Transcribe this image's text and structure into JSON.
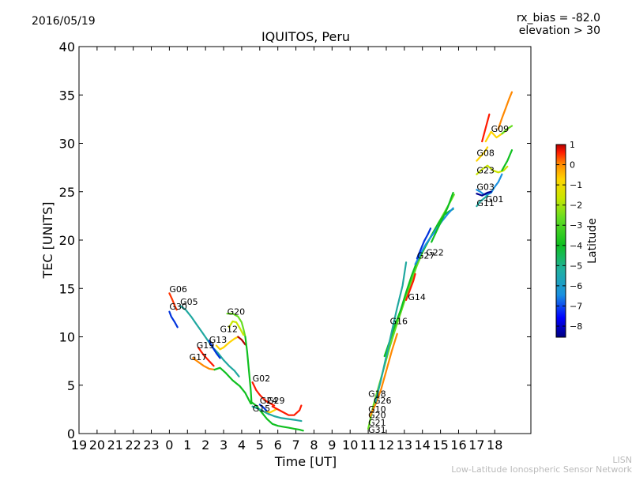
{
  "header": {
    "date": "2016/05/19",
    "rx_bias": "rx_bias = -82.0",
    "elevation": "elevation > 30",
    "title": "IQUITOS, Peru"
  },
  "footer": {
    "line1": "LISN",
    "line2": "Low-Latitude Ionospheric Sensor Network"
  },
  "colors": {
    "dark_red": "#b30000",
    "red": "#ff1a00",
    "orange": "#ff8800",
    "yellow": "#ffd400",
    "yellow_green": "#c8e600",
    "light_green": "#66dd22",
    "green": "#10c020",
    "teal": "#20a8a0",
    "light_blue": "#1a90e0",
    "blue": "#0033dd",
    "dark_blue": "#000090"
  },
  "chart_data": {
    "type": "line",
    "title": "IQUITOS, Peru",
    "xlabel": "Time [UT]",
    "ylabel": "TEC [UNITS]",
    "xticks": [
      "19",
      "20",
      "21",
      "22",
      "23",
      "0",
      "1",
      "2",
      "3",
      "4",
      "5",
      "6",
      "7",
      "8",
      "9",
      "10",
      "11",
      "12",
      "13",
      "14",
      "15",
      "16",
      "17",
      "18"
    ],
    "ylim": [
      0,
      40
    ],
    "yticks": [
      "0",
      "5",
      "10",
      "15",
      "20",
      "25",
      "30",
      "35",
      "40"
    ],
    "grid": false,
    "colorbar": {
      "label": "Latitude",
      "ticks": [
        "1",
        "0",
        "−1",
        "−2",
        "−3",
        "−4",
        "−5",
        "−6",
        "−7",
        "−8"
      ]
    },
    "series": [
      {
        "name": "G06",
        "color": "#ff3300",
        "x": [
          0.0,
          0.15,
          0.3,
          0.4
        ],
        "y": [
          14.5,
          13.9,
          13.2,
          12.8
        ]
      },
      {
        "name": "G05",
        "color": "#20a8a0",
        "x": [
          0.6,
          0.9,
          1.2,
          1.5,
          1.8,
          2.1,
          2.4,
          2.7,
          3.0,
          3.3,
          3.6,
          3.85
        ],
        "y": [
          13.2,
          12.8,
          12.1,
          11.3,
          10.5,
          9.7,
          8.9,
          8.3,
          7.6,
          7.0,
          6.5,
          5.9
        ]
      },
      {
        "name": "G30",
        "color": "#0033dd",
        "x": [
          0.0,
          0.1,
          0.3,
          0.45
        ],
        "y": [
          12.6,
          12.1,
          11.5,
          11.0
        ]
      },
      {
        "name": "G17",
        "color": "#ff8800",
        "x": [
          1.3,
          1.6,
          1.9,
          2.2,
          2.5
        ],
        "y": [
          7.8,
          7.4,
          7.0,
          6.7,
          6.6
        ]
      },
      {
        "name": "G17 tail",
        "color": "#10c020",
        "x": [
          2.5,
          2.8,
          3.1,
          3.5,
          3.9,
          4.2,
          4.5
        ],
        "y": [
          6.6,
          6.8,
          6.3,
          5.5,
          4.9,
          4.2,
          3.1
        ]
      },
      {
        "name": "G19",
        "color": "#ff1a00",
        "x": [
          1.6,
          1.9,
          2.2,
          2.45
        ],
        "y": [
          8.9,
          8.1,
          7.5,
          7.0
        ]
      },
      {
        "name": "G13",
        "color": "#0033dd",
        "x": [
          2.2,
          2.4,
          2.6,
          2.8
        ],
        "y": [
          9.6,
          8.9,
          8.3,
          7.8
        ]
      },
      {
        "name": "G12",
        "color": "#ffd400",
        "x": [
          2.6,
          2.8,
          3.0,
          3.3,
          3.6,
          3.8
        ],
        "y": [
          9.1,
          8.7,
          8.9,
          9.4,
          9.8,
          10.0
        ]
      },
      {
        "name": "G12 end",
        "color": "#b30000",
        "x": [
          3.8,
          4.0,
          4.2
        ],
        "y": [
          10.0,
          9.7,
          9.2
        ]
      },
      {
        "name": "G20",
        "color": "#66dd22",
        "x": [
          3.2,
          3.5,
          3.8,
          4.0,
          4.1,
          4.2
        ],
        "y": [
          12.4,
          12.4,
          12.1,
          11.5,
          10.8,
          10.0
        ]
      },
      {
        "name": "G20 drop",
        "color": "#10c020",
        "x": [
          4.2,
          4.3,
          4.4,
          4.5,
          4.55
        ],
        "y": [
          10.0,
          8.5,
          6.5,
          4.5,
          3.1
        ]
      },
      {
        "name": "G22 early",
        "color": "#c8e600",
        "x": [
          3.3,
          3.5,
          3.7,
          3.9,
          4.1
        ],
        "y": [
          11.0,
          11.6,
          11.5,
          10.9,
          10.2
        ]
      },
      {
        "name": "G02",
        "color": "#ff1a00",
        "x": [
          4.6,
          4.8,
          5.0,
          5.2,
          5.4,
          5.6,
          5.8
        ],
        "y": [
          5.3,
          4.5,
          4.0,
          3.6,
          3.3,
          3.1,
          2.9
        ]
      },
      {
        "name": "G15",
        "color": "#0033dd",
        "x": [
          5.0,
          5.2,
          5.4,
          5.5
        ],
        "y": [
          3.0,
          2.7,
          2.3,
          2.0
        ]
      },
      {
        "name": "G24",
        "color": "#ffd400",
        "x": [
          5.0,
          5.3,
          5.6,
          5.9
        ],
        "y": [
          2.4,
          2.2,
          2.2,
          2.5
        ]
      },
      {
        "name": "G29",
        "color": "#ff1a00",
        "x": [
          5.7,
          6.0,
          6.3,
          6.6,
          6.9,
          7.2,
          7.3
        ],
        "y": [
          2.8,
          2.5,
          2.2,
          1.9,
          1.9,
          2.4,
          2.9
        ]
      },
      {
        "name": "G09 low",
        "color": "#10c020",
        "x": [
          4.5,
          4.8,
          5.1,
          5.4,
          5.7,
          6.0,
          6.3,
          6.6,
          6.9,
          7.2,
          7.4
        ],
        "y": [
          3.3,
          2.9,
          2.2,
          1.5,
          1.0,
          0.8,
          0.7,
          0.6,
          0.5,
          0.4,
          0.3
        ]
      },
      {
        "name": "G05 low",
        "color": "#20a8a0",
        "x": [
          4.6,
          5.0,
          5.4,
          5.8,
          6.2,
          6.6,
          7.0,
          7.3
        ],
        "y": [
          2.8,
          2.5,
          2.1,
          1.8,
          1.6,
          1.5,
          1.4,
          1.3
        ]
      },
      {
        "name": "G31",
        "color": "#66dd22",
        "x": [
          11.0,
          11.3,
          11.6,
          11.9,
          12.2,
          12.5,
          12.8,
          13.1,
          13.4,
          13.7,
          14.0,
          14.3,
          14.6,
          14.9,
          15.2,
          15.5,
          15.75
        ],
        "y": [
          0.5,
          3.0,
          5.0,
          7.0,
          9.0,
          10.8,
          12.5,
          14.2,
          15.8,
          17.4,
          18.7,
          19.8,
          20.8,
          21.8,
          22.8,
          23.8,
          24.7
        ]
      },
      {
        "name": "G21",
        "color": "#ff8800",
        "x": [
          11.1,
          11.4,
          11.7,
          12.0,
          12.3,
          12.6
        ],
        "y": [
          1.8,
          3.0,
          4.5,
          6.5,
          8.5,
          10.3
        ]
      },
      {
        "name": "G16",
        "color": "#10c020",
        "x": [
          11.9,
          12.2,
          12.5,
          12.8,
          13.1,
          13.4,
          13.7,
          14.0,
          14.3,
          14.6,
          14.9,
          15.2,
          15.5,
          15.7
        ],
        "y": [
          8.0,
          9.6,
          11.3,
          12.8,
          14.6,
          16.3,
          17.8,
          18.8,
          19.8,
          20.8,
          21.8,
          22.6,
          23.0,
          23.2
        ]
      },
      {
        "name": "G26",
        "color": "#20a8a0",
        "x": [
          11.4,
          11.7,
          12.0,
          12.3,
          12.6,
          12.9,
          13.1
        ],
        "y": [
          3.2,
          5.5,
          8.0,
          10.5,
          13.0,
          15.3,
          17.7
        ]
      },
      {
        "name": "G14",
        "color": "#ff1a00",
        "x": [
          13.1,
          13.3,
          13.5,
          13.6
        ],
        "y": [
          13.8,
          14.8,
          15.8,
          16.5
        ]
      },
      {
        "name": "G22",
        "color": "#1a90e0",
        "x": [
          13.6,
          13.9,
          14.2,
          14.5,
          14.8,
          15.1,
          15.4,
          15.7
        ],
        "y": [
          17.5,
          18.6,
          19.6,
          20.4,
          21.2,
          22.0,
          22.7,
          23.3
        ]
      },
      {
        "name": "G27",
        "color": "#0033dd",
        "x": [
          13.7,
          13.9,
          14.1,
          14.3,
          14.45
        ],
        "y": [
          18.1,
          19.0,
          19.9,
          20.6,
          21.2
        ]
      },
      {
        "name": "G32",
        "color": "#10c020",
        "x": [
          14.5,
          14.8,
          15.1,
          15.4,
          15.7
        ],
        "y": [
          19.8,
          21.0,
          22.2,
          23.4,
          24.9
        ]
      },
      {
        "name": "G08",
        "color": "#ffd400",
        "x": [
          17.0,
          17.2,
          17.4,
          17.6
        ],
        "y": [
          28.2,
          28.6,
          29.0,
          29.6
        ]
      },
      {
        "name": "G09",
        "color": "#ffd400",
        "x": [
          17.5,
          17.8,
          18.1,
          18.4,
          18.7
        ],
        "y": [
          30.2,
          31.2,
          30.6,
          31.0,
          31.4
        ]
      },
      {
        "name": "G09 tail",
        "color": "#66dd22",
        "x": [
          18.4,
          18.7,
          18.95
        ],
        "y": [
          31.0,
          31.5,
          31.8
        ]
      },
      {
        "name": "G09 red",
        "color": "#ff1a00",
        "x": [
          17.3,
          17.5,
          17.7
        ],
        "y": [
          30.2,
          31.6,
          33.0
        ]
      },
      {
        "name": "G09 high",
        "color": "#ff8800",
        "x": [
          18.2,
          18.4,
          18.6,
          18.8,
          18.95
        ],
        "y": [
          31.5,
          32.6,
          33.6,
          34.6,
          35.3
        ]
      },
      {
        "name": "G23",
        "color": "#c8e600",
        "x": [
          17.0,
          17.3,
          17.6,
          17.9,
          18.2,
          18.5,
          18.7
        ],
        "y": [
          26.8,
          27.3,
          27.7,
          27.2,
          27.0,
          27.2,
          27.6
        ]
      },
      {
        "name": "G23 tail",
        "color": "#10c020",
        "x": [
          18.4,
          18.7,
          18.95
        ],
        "y": [
          27.2,
          28.2,
          29.3
        ]
      },
      {
        "name": "G03",
        "color": "#1a90e0",
        "x": [
          17.0,
          17.2,
          17.4,
          17.6,
          17.8,
          18.0,
          18.2,
          18.4
        ],
        "y": [
          25.2,
          25.0,
          24.7,
          24.7,
          24.9,
          25.5,
          26.0,
          26.8
        ]
      },
      {
        "name": "G01",
        "color": "#000090",
        "x": [
          17.0,
          17.3,
          17.6,
          17.8
        ],
        "y": [
          24.8,
          24.6,
          24.9,
          25.0
        ]
      },
      {
        "name": "G11",
        "color": "#20a8a0",
        "x": [
          17.0,
          17.2,
          17.4,
          17.6
        ],
        "y": [
          23.5,
          24.0,
          24.3,
          24.6
        ]
      }
    ],
    "labels": [
      {
        "text": "G06",
        "x": 0.0,
        "y": 14.6
      },
      {
        "text": "G05",
        "x": 0.6,
        "y": 13.3
      },
      {
        "text": "G30",
        "x": 0.0,
        "y": 12.8
      },
      {
        "text": "G17",
        "x": 1.1,
        "y": 7.6
      },
      {
        "text": "G19",
        "x": 1.5,
        "y": 8.8
      },
      {
        "text": "G13",
        "x": 2.2,
        "y": 9.4
      },
      {
        "text": "G12",
        "x": 2.8,
        "y": 10.5
      },
      {
        "text": "G20",
        "x": 3.2,
        "y": 12.3
      },
      {
        "text": "G02",
        "x": 4.6,
        "y": 5.4
      },
      {
        "text": "G15",
        "x": 4.6,
        "y": 2.3
      },
      {
        "text": "G24",
        "x": 5.0,
        "y": 3.1
      },
      {
        "text": "G29",
        "x": 5.4,
        "y": 3.1
      },
      {
        "text": "G18",
        "x": 11.0,
        "y": 3.8
      },
      {
        "text": "G26",
        "x": 11.3,
        "y": 3.1
      },
      {
        "text": "G10",
        "x": 11.0,
        "y": 2.2
      },
      {
        "text": "G20",
        "x": 11.0,
        "y": 1.6
      },
      {
        "text": "G21",
        "x": 11.0,
        "y": 0.8
      },
      {
        "text": "G31",
        "x": 11.0,
        "y": 0.1
      },
      {
        "text": "G16",
        "x": 12.2,
        "y": 11.3
      },
      {
        "text": "G14",
        "x": 13.2,
        "y": 13.8
      },
      {
        "text": "G27",
        "x": 13.7,
        "y": 18.1
      },
      {
        "text": "G22",
        "x": 14.2,
        "y": 18.4
      },
      {
        "text": "G08",
        "x": 17.0,
        "y": 28.7
      },
      {
        "text": "G09",
        "x": 17.8,
        "y": 31.2
      },
      {
        "text": "G23",
        "x": 17.0,
        "y": 26.9
      },
      {
        "text": "G03",
        "x": 17.0,
        "y": 25.2
      },
      {
        "text": "G01",
        "x": 17.5,
        "y": 23.9
      },
      {
        "text": "G11",
        "x": 17.0,
        "y": 23.5
      }
    ]
  }
}
